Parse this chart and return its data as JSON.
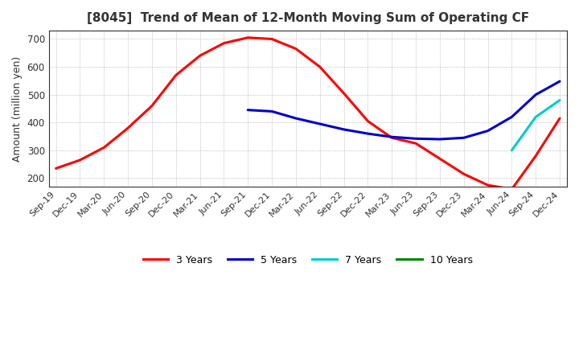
{
  "title": "[8045]  Trend of Mean of 12-Month Moving Sum of Operating CF",
  "ylabel": "Amount (million yen)",
  "ylim": [
    170,
    730
  ],
  "yticks": [
    200,
    300,
    400,
    500,
    600,
    700
  ],
  "x_labels": [
    "Sep-19",
    "Dec-19",
    "Mar-20",
    "Jun-20",
    "Sep-20",
    "Dec-20",
    "Mar-21",
    "Jun-21",
    "Sep-21",
    "Dec-21",
    "Mar-22",
    "Jun-22",
    "Sep-22",
    "Dec-22",
    "Mar-23",
    "Jun-23",
    "Sep-23",
    "Dec-23",
    "Mar-24",
    "Jun-24",
    "Sep-24",
    "Dec-24"
  ],
  "series": {
    "3 Years": {
      "color": "#ff0000",
      "values": [
        235,
        265,
        310,
        380,
        460,
        570,
        640,
        685,
        705,
        700,
        665,
        600,
        505,
        405,
        345,
        325,
        270,
        215,
        175,
        160,
        280,
        415
      ]
    },
    "5 Years": {
      "color": "#0000cc",
      "values": [
        null,
        null,
        null,
        null,
        null,
        null,
        null,
        null,
        445,
        440,
        415,
        395,
        375,
        360,
        348,
        342,
        340,
        345,
        370,
        420,
        500,
        548
      ]
    },
    "7 Years": {
      "color": "#00cccc",
      "values": [
        null,
        null,
        null,
        null,
        null,
        null,
        null,
        null,
        null,
        null,
        null,
        null,
        null,
        null,
        null,
        null,
        null,
        null,
        null,
        300,
        420,
        480
      ]
    },
    "10 Years": {
      "color": "#008800",
      "values": [
        null,
        null,
        null,
        null,
        null,
        null,
        null,
        null,
        null,
        null,
        null,
        null,
        null,
        null,
        null,
        null,
        null,
        null,
        null,
        null,
        null,
        null
      ]
    }
  },
  "background_color": "#ffffff",
  "plot_background": "#ffffff",
  "grid_color": "#aaaaaa",
  "title_fontsize": 11,
  "legend_ncol": 4
}
